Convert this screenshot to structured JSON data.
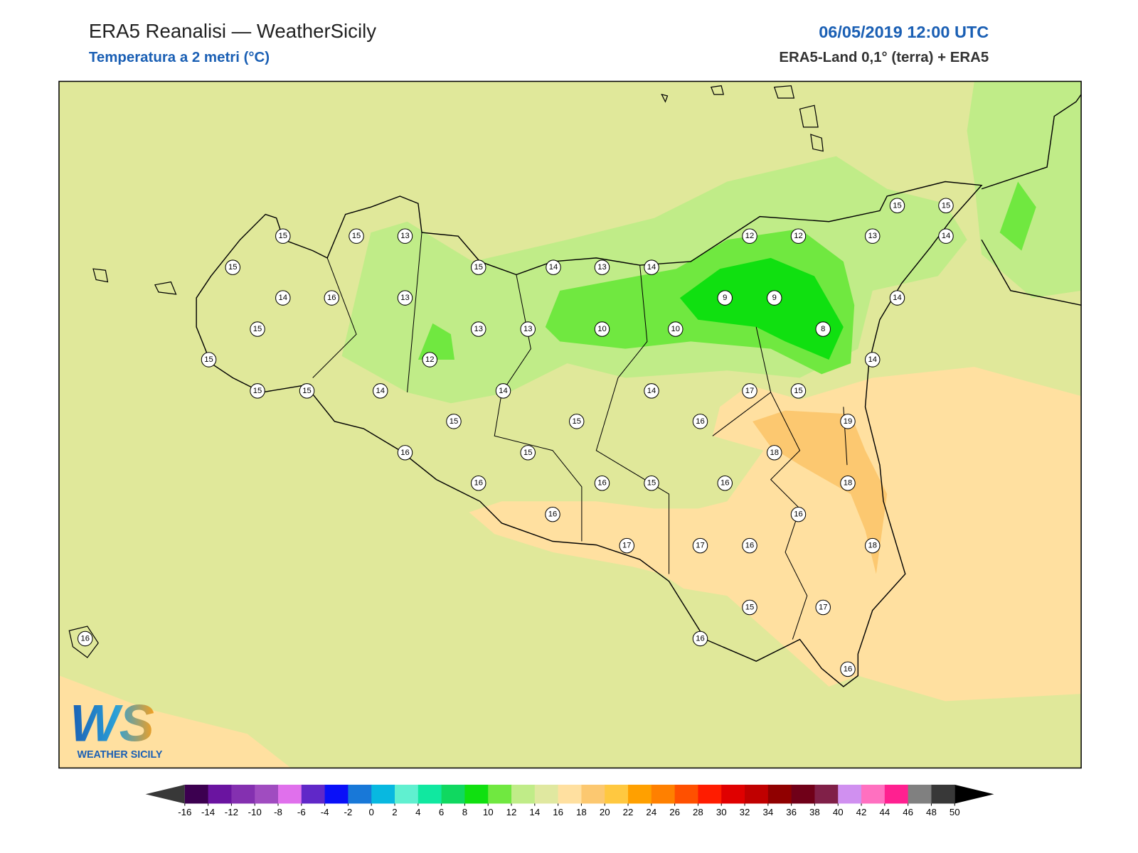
{
  "header": {
    "title": "ERA5 Reanalisi — WeatherSicily",
    "subtitle": "Temperatura a 2 metri (°C)",
    "datetime": "06/05/2019 12:00 UTC",
    "source": "ERA5-Land 0,1° (terra) + ERA5"
  },
  "stations": [
    15,
    15,
    13,
    15,
    15,
    14,
    13,
    14,
    12,
    12,
    13,
    15,
    15,
    14,
    14,
    16,
    13,
    9,
    9,
    14,
    15,
    13,
    13,
    10,
    10,
    8,
    15,
    12,
    14,
    15,
    15,
    14,
    14,
    14,
    17,
    15,
    15,
    15,
    16,
    19,
    16,
    15,
    18,
    16,
    16,
    15,
    16,
    18,
    16,
    16,
    17,
    17,
    16,
    18,
    15,
    17,
    16,
    16,
    16
  ],
  "colorbar": {
    "ticks": [
      -16,
      -14,
      -12,
      -10,
      -8,
      -6,
      -4,
      -2,
      0,
      2,
      4,
      6,
      8,
      10,
      12,
      14,
      16,
      18,
      20,
      22,
      24,
      26,
      28,
      30,
      32,
      34,
      36,
      38,
      40,
      42,
      44,
      46,
      48,
      50
    ],
    "colors": [
      "#3c0050",
      "#6a14a0",
      "#8430b0",
      "#a04cc0",
      "#e070ec",
      "#6028c8",
      "#0a10f8",
      "#1878d8",
      "#08b8e0",
      "#60f0d0",
      "#10e8a0",
      "#10d860",
      "#10e010",
      "#70e840",
      "#c0ec88",
      "#e0e8a0",
      "#ffe0a0",
      "#fcc870",
      "#ffc840",
      "#ffa000",
      "#ff8000",
      "#ff5000",
      "#ff1c00",
      "#e00000",
      "#c00000",
      "#900000",
      "#700018",
      "#802048",
      "#d090f0",
      "#ff70c0",
      "#ff2090",
      "#808080",
      "#383838"
    ],
    "under_color": "#383838",
    "over_color": "#000000"
  },
  "logo": {
    "mark": "WS",
    "name": "WEATHER SICILY"
  }
}
